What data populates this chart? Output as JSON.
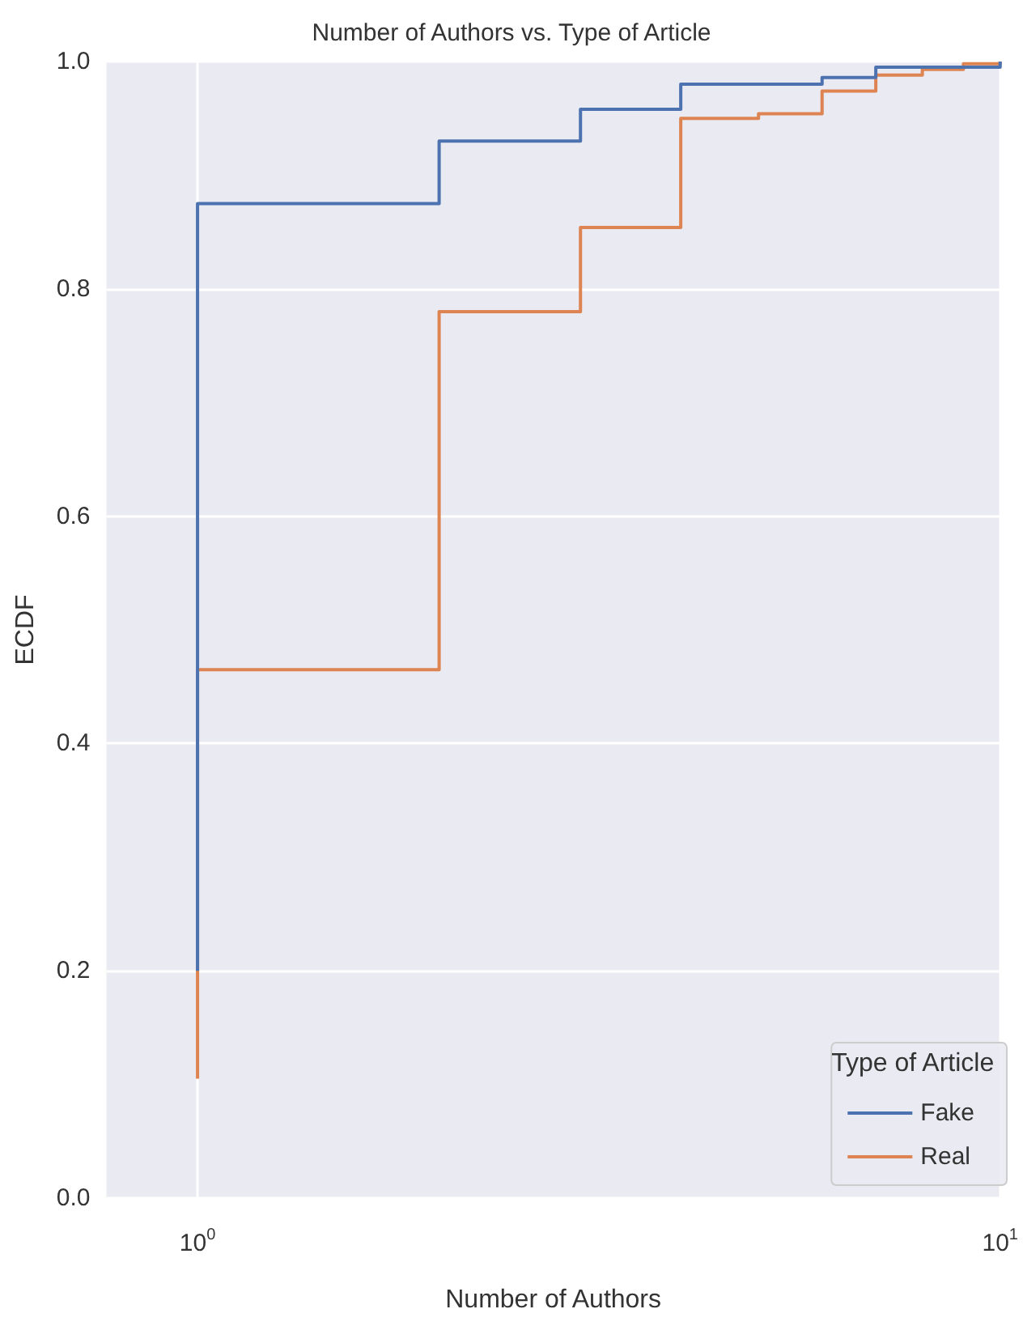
{
  "chart_data": {
    "type": "step",
    "title": "Number of Authors vs. Type of Article",
    "xlabel": "Number of Authors",
    "ylabel": "ECDF",
    "legend_title": "Type of Article",
    "series": [
      {
        "name": "Fake",
        "color": "#4c72b0",
        "x": [
          1,
          1,
          2,
          3,
          4,
          6,
          7,
          10
        ],
        "values": [
          0.2,
          0.875,
          0.93,
          0.958,
          0.98,
          0.986,
          0.995,
          1.0
        ]
      },
      {
        "name": "Real",
        "color": "#dd8452",
        "x": [
          1,
          1,
          2,
          3,
          4,
          5,
          6,
          7,
          8,
          9,
          10
        ],
        "values": [
          0.105,
          0.465,
          0.78,
          0.854,
          0.95,
          0.954,
          0.974,
          0.988,
          0.993,
          0.998,
          1.0
        ]
      }
    ],
    "log": "x",
    "xlim": [
      0.77,
      10
    ],
    "xticks": [
      {
        "value": 1,
        "label": "10$^{0}$"
      },
      {
        "value": 10,
        "label": "10$^{1}$"
      }
    ],
    "ylim": [
      0,
      1
    ],
    "yticks": [
      {
        "value": 0,
        "label": "0.0"
      },
      0.2,
      0.4,
      0.6,
      0.8,
      {
        "value": 1,
        "label": "1.0"
      }
    ],
    "grid": true,
    "legend": "bottom right"
  }
}
